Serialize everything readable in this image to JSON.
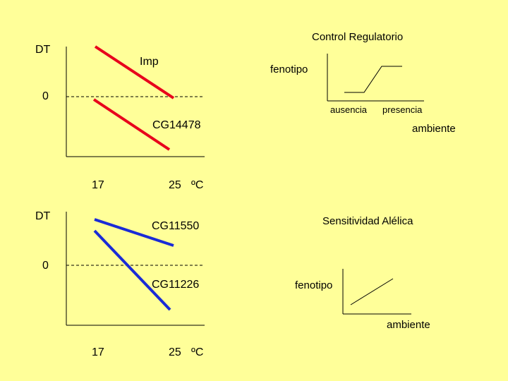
{
  "colors": {
    "background": "#ffff99",
    "line_red": "#e8001c",
    "line_blue": "#1a2bd6",
    "axis": "#000000"
  },
  "top_graph": {
    "y_label": "DT",
    "zero_label": "0",
    "x_tick_low": "17",
    "x_tick_high": "25",
    "x_unit": "ºC",
    "line_imp": "Imp",
    "line_cg14478": "CG14478"
  },
  "bottom_graph": {
    "y_label": "DT",
    "zero_label": "0",
    "x_tick_low": "17",
    "x_tick_high": "25",
    "x_unit": "ºC",
    "line_cg11550": "CG11550",
    "line_cg11226": "CG11226"
  },
  "control_regulatorio": {
    "title": "Control Regulatorio",
    "y_label": "fenotipo",
    "x_label_left": "ausencia",
    "x_label_right": "presencia",
    "x_axis_label": "ambiente"
  },
  "sensitividad_alelica": {
    "title": "Sensitividad Alélica",
    "y_label": "fenotipo",
    "x_axis_label": "ambiente"
  }
}
